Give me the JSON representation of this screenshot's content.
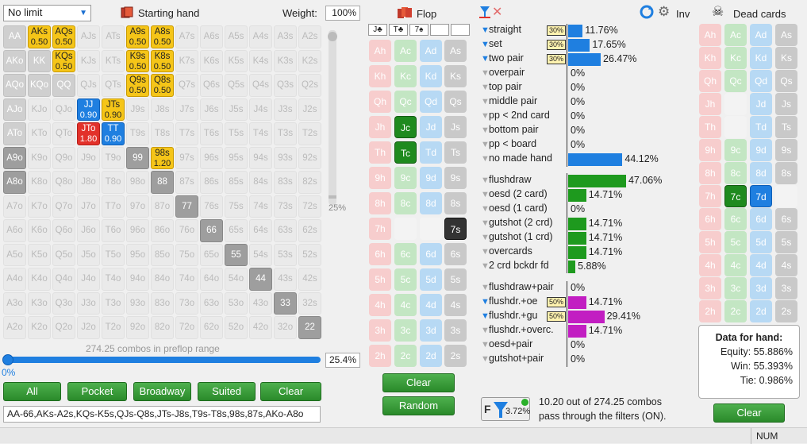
{
  "top": {
    "limit_select": "No limit",
    "starting_hand_label": "Starting hand",
    "weight_label": "Weight:",
    "weight_value": "100%",
    "flop_label": "Flop",
    "inv_label": "Inv",
    "dead_cards_label": "Dead cards"
  },
  "hand_grid": {
    "rows": [
      [
        [
          "AA",
          "g",
          ""
        ],
        [
          "AKs",
          "y",
          "0.50"
        ],
        [
          "AQs",
          "y",
          "0.50"
        ],
        [
          "AJs",
          "",
          ""
        ],
        [
          "ATs",
          "",
          ""
        ],
        [
          "A9s",
          "y",
          "0.50"
        ],
        [
          "A8s",
          "y",
          "0.50"
        ],
        [
          "A7s",
          "",
          ""
        ],
        [
          "A6s",
          "",
          ""
        ],
        [
          "A5s",
          "",
          ""
        ],
        [
          "A4s",
          "",
          ""
        ],
        [
          "A3s",
          "",
          ""
        ],
        [
          "A2s",
          "",
          ""
        ]
      ],
      [
        [
          "AKo",
          "g",
          ""
        ],
        [
          "KK",
          "g",
          ""
        ],
        [
          "KQs",
          "y",
          "0.50"
        ],
        [
          "KJs",
          "",
          ""
        ],
        [
          "KTs",
          "",
          ""
        ],
        [
          "K9s",
          "y",
          "0.50"
        ],
        [
          "K8s",
          "y",
          "0.50"
        ],
        [
          "K7s",
          "",
          ""
        ],
        [
          "K6s",
          "",
          ""
        ],
        [
          "K5s",
          "",
          ""
        ],
        [
          "K4s",
          "",
          ""
        ],
        [
          "K3s",
          "",
          ""
        ],
        [
          "K2s",
          "",
          ""
        ]
      ],
      [
        [
          "AQo",
          "g",
          ""
        ],
        [
          "KQo",
          "g",
          ""
        ],
        [
          "QQ",
          "g",
          ""
        ],
        [
          "QJs",
          "",
          ""
        ],
        [
          "QTs",
          "",
          ""
        ],
        [
          "Q9s",
          "y",
          "0.50"
        ],
        [
          "Q8s",
          "y",
          "0.50"
        ],
        [
          "Q7s",
          "",
          ""
        ],
        [
          "Q6s",
          "",
          ""
        ],
        [
          "Q5s",
          "",
          ""
        ],
        [
          "Q4s",
          "",
          ""
        ],
        [
          "Q3s",
          "",
          ""
        ],
        [
          "Q2s",
          "",
          ""
        ]
      ],
      [
        [
          "AJo",
          "g",
          ""
        ],
        [
          "KJo",
          "",
          ""
        ],
        [
          "QJo",
          "",
          ""
        ],
        [
          "JJ",
          "b",
          "0.90"
        ],
        [
          "JTs",
          "y",
          "0.90"
        ],
        [
          "J9s",
          "",
          ""
        ],
        [
          "J8s",
          "",
          ""
        ],
        [
          "J7s",
          "",
          ""
        ],
        [
          "J6s",
          "",
          ""
        ],
        [
          "J5s",
          "",
          ""
        ],
        [
          "J4s",
          "",
          ""
        ],
        [
          "J3s",
          "",
          ""
        ],
        [
          "J2s",
          "",
          ""
        ]
      ],
      [
        [
          "ATo",
          "g",
          ""
        ],
        [
          "KTo",
          "",
          ""
        ],
        [
          "QTo",
          "",
          ""
        ],
        [
          "JTo",
          "r",
          "1.80"
        ],
        [
          "TT",
          "b",
          "0.90"
        ],
        [
          "T9s",
          "",
          ""
        ],
        [
          "T8s",
          "",
          ""
        ],
        [
          "T7s",
          "",
          ""
        ],
        [
          "T6s",
          "",
          ""
        ],
        [
          "T5s",
          "",
          ""
        ],
        [
          "T4s",
          "",
          ""
        ],
        [
          "T3s",
          "",
          ""
        ],
        [
          "T2s",
          "",
          ""
        ]
      ],
      [
        [
          "A9o",
          "dg",
          ""
        ],
        [
          "K9o",
          "",
          ""
        ],
        [
          "Q9o",
          "",
          ""
        ],
        [
          "J9o",
          "",
          ""
        ],
        [
          "T9o",
          "",
          ""
        ],
        [
          "99",
          "dg",
          ""
        ],
        [
          "98s",
          "y",
          "1.20"
        ],
        [
          "97s",
          "",
          ""
        ],
        [
          "96s",
          "",
          ""
        ],
        [
          "95s",
          "",
          ""
        ],
        [
          "94s",
          "",
          ""
        ],
        [
          "93s",
          "",
          ""
        ],
        [
          "92s",
          "",
          ""
        ]
      ],
      [
        [
          "A8o",
          "dg",
          ""
        ],
        [
          "K8o",
          "",
          ""
        ],
        [
          "Q8o",
          "",
          ""
        ],
        [
          "J8o",
          "",
          ""
        ],
        [
          "T8o",
          "",
          ""
        ],
        [
          "98o",
          "",
          ""
        ],
        [
          "88",
          "dg",
          ""
        ],
        [
          "87s",
          "",
          ""
        ],
        [
          "86s",
          "",
          ""
        ],
        [
          "85s",
          "",
          ""
        ],
        [
          "84s",
          "",
          ""
        ],
        [
          "83s",
          "",
          ""
        ],
        [
          "82s",
          "",
          ""
        ]
      ],
      [
        [
          "A7o",
          "",
          ""
        ],
        [
          "K7o",
          "",
          ""
        ],
        [
          "Q7o",
          "",
          ""
        ],
        [
          "J7o",
          "",
          ""
        ],
        [
          "T7o",
          "",
          ""
        ],
        [
          "97o",
          "",
          ""
        ],
        [
          "87o",
          "",
          ""
        ],
        [
          "77",
          "dg",
          ""
        ],
        [
          "76s",
          "",
          ""
        ],
        [
          "75s",
          "",
          ""
        ],
        [
          "74s",
          "",
          ""
        ],
        [
          "73s",
          "",
          ""
        ],
        [
          "72s",
          "",
          ""
        ]
      ],
      [
        [
          "A6o",
          "",
          ""
        ],
        [
          "K6o",
          "",
          ""
        ],
        [
          "Q6o",
          "",
          ""
        ],
        [
          "J6o",
          "",
          ""
        ],
        [
          "T6o",
          "",
          ""
        ],
        [
          "96o",
          "",
          ""
        ],
        [
          "86o",
          "",
          ""
        ],
        [
          "76o",
          "",
          ""
        ],
        [
          "66",
          "dg",
          ""
        ],
        [
          "65s",
          "",
          ""
        ],
        [
          "64s",
          "",
          ""
        ],
        [
          "63s",
          "",
          ""
        ],
        [
          "62s",
          "",
          ""
        ]
      ],
      [
        [
          "A5o",
          "",
          ""
        ],
        [
          "K5o",
          "",
          ""
        ],
        [
          "Q5o",
          "",
          ""
        ],
        [
          "J5o",
          "",
          ""
        ],
        [
          "T5o",
          "",
          ""
        ],
        [
          "95o",
          "",
          ""
        ],
        [
          "85o",
          "",
          ""
        ],
        [
          "75o",
          "",
          ""
        ],
        [
          "65o",
          "",
          ""
        ],
        [
          "55",
          "dg",
          ""
        ],
        [
          "54s",
          "",
          ""
        ],
        [
          "53s",
          "",
          ""
        ],
        [
          "52s",
          "",
          ""
        ]
      ],
      [
        [
          "A4o",
          "",
          ""
        ],
        [
          "K4o",
          "",
          ""
        ],
        [
          "Q4o",
          "",
          ""
        ],
        [
          "J4o",
          "",
          ""
        ],
        [
          "T4o",
          "",
          ""
        ],
        [
          "94o",
          "",
          ""
        ],
        [
          "84o",
          "",
          ""
        ],
        [
          "74o",
          "",
          ""
        ],
        [
          "64o",
          "",
          ""
        ],
        [
          "54o",
          "",
          ""
        ],
        [
          "44",
          "dg",
          ""
        ],
        [
          "43s",
          "",
          ""
        ],
        [
          "42s",
          "",
          ""
        ]
      ],
      [
        [
          "A3o",
          "",
          ""
        ],
        [
          "K3o",
          "",
          ""
        ],
        [
          "Q3o",
          "",
          ""
        ],
        [
          "J3o",
          "",
          ""
        ],
        [
          "T3o",
          "",
          ""
        ],
        [
          "93o",
          "",
          ""
        ],
        [
          "83o",
          "",
          ""
        ],
        [
          "73o",
          "",
          ""
        ],
        [
          "63o",
          "",
          ""
        ],
        [
          "53o",
          "",
          ""
        ],
        [
          "43o",
          "",
          ""
        ],
        [
          "33",
          "dg",
          ""
        ],
        [
          "32s",
          "",
          ""
        ]
      ],
      [
        [
          "A2o",
          "",
          ""
        ],
        [
          "K2o",
          "",
          ""
        ],
        [
          "Q2o",
          "",
          ""
        ],
        [
          "J2o",
          "",
          ""
        ],
        [
          "T2o",
          "",
          ""
        ],
        [
          "92o",
          "",
          ""
        ],
        [
          "82o",
          "",
          ""
        ],
        [
          "72o",
          "",
          ""
        ],
        [
          "62o",
          "",
          ""
        ],
        [
          "52o",
          "",
          ""
        ],
        [
          "42o",
          "",
          ""
        ],
        [
          "32o",
          "",
          ""
        ],
        [
          "22",
          "dg",
          ""
        ]
      ]
    ],
    "combos_text": "274.25 combos in preflop range",
    "vslider_label": "25%",
    "hslider_left": "0%",
    "hslider_value": "25.4%"
  },
  "buttons": {
    "all": "All",
    "pocket": "Pocket",
    "broadway": "Broadway",
    "suited": "Suited",
    "clear": "Clear"
  },
  "range_text": "AA-66,AKs-A2s,KQs-K5s,QJs-Q8s,JTs-J8s,T9s-T8s,98s,87s,AKo-A8o",
  "flop": {
    "slots": [
      "J♣",
      "T♣",
      "7♠",
      "",
      ""
    ],
    "ranks": [
      "A",
      "K",
      "Q",
      "J",
      "T",
      "9",
      "8",
      "7",
      "6",
      "5",
      "4",
      "3",
      "2"
    ],
    "selected": {
      "J-c": "sel-c",
      "T-c": "sel-c",
      "7-s": "sel-s"
    },
    "faint": [
      "J-c-row",
      "7-c",
      "7-d"
    ],
    "clear_label": "Clear",
    "random_label": "Random"
  },
  "stats": {
    "made": [
      {
        "label": "straight",
        "on": true,
        "tag": "30%",
        "pct": "11.76%",
        "w": 11.76,
        "color": "#1f7fe0"
      },
      {
        "label": "set",
        "on": true,
        "tag": "30%",
        "pct": "17.65%",
        "w": 17.65,
        "color": "#1f7fe0"
      },
      {
        "label": "two pair",
        "on": true,
        "tag": "30%",
        "pct": "26.47%",
        "w": 26.47,
        "color": "#1f7fe0"
      },
      {
        "label": "overpair",
        "on": false,
        "tag": "",
        "pct": "0%",
        "w": 0,
        "color": "#1f7fe0"
      },
      {
        "label": "top pair",
        "on": false,
        "tag": "",
        "pct": "0%",
        "w": 0,
        "color": "#1f7fe0"
      },
      {
        "label": "middle pair",
        "on": false,
        "tag": "",
        "pct": "0%",
        "w": 0,
        "color": "#1f7fe0"
      },
      {
        "label": "pp < 2nd card",
        "on": false,
        "tag": "",
        "pct": "0%",
        "w": 0,
        "color": "#1f7fe0"
      },
      {
        "label": "bottom pair",
        "on": false,
        "tag": "",
        "pct": "0%",
        "w": 0,
        "color": "#1f7fe0"
      },
      {
        "label": "pp < board",
        "on": false,
        "tag": "",
        "pct": "0%",
        "w": 0,
        "color": "#1f7fe0"
      },
      {
        "label": "no made hand",
        "on": false,
        "tag": "",
        "pct": "44.12%",
        "w": 44.12,
        "color": "#1f7fe0"
      }
    ],
    "draws": [
      {
        "label": "flushdraw",
        "on": false,
        "tag": "",
        "pct": "47.06%",
        "w": 47.06,
        "color": "#1e9a1e"
      },
      {
        "label": "oesd (2 card)",
        "on": false,
        "tag": "",
        "pct": "14.71%",
        "w": 14.71,
        "color": "#1e9a1e"
      },
      {
        "label": "oesd (1 card)",
        "on": false,
        "tag": "",
        "pct": "0%",
        "w": 0,
        "color": "#1e9a1e"
      },
      {
        "label": "gutshot (2 crd)",
        "on": false,
        "tag": "",
        "pct": "14.71%",
        "w": 14.71,
        "color": "#1e9a1e"
      },
      {
        "label": "gutshot (1 crd)",
        "on": false,
        "tag": "",
        "pct": "14.71%",
        "w": 14.71,
        "color": "#1e9a1e"
      },
      {
        "label": "overcards",
        "on": false,
        "tag": "",
        "pct": "14.71%",
        "w": 14.71,
        "color": "#1e9a1e"
      },
      {
        "label": "2 crd bckdr fd",
        "on": false,
        "tag": "",
        "pct": "5.88%",
        "w": 5.88,
        "color": "#1e9a1e"
      }
    ],
    "combos": [
      {
        "label": "flushdraw+pair",
        "on": false,
        "tag": "",
        "pct": "0%",
        "w": 0,
        "color": "#c21ec2"
      },
      {
        "label": "flushdr.+oe",
        "on": true,
        "tag": "50%",
        "pct": "14.71%",
        "w": 14.71,
        "color": "#c21ec2"
      },
      {
        "label": "flushdr.+gu",
        "on": true,
        "tag": "50%",
        "pct": "29.41%",
        "w": 29.41,
        "color": "#c21ec2"
      },
      {
        "label": "flushdr.+overc.",
        "on": false,
        "tag": "",
        "pct": "14.71%",
        "w": 14.71,
        "color": "#c21ec2"
      },
      {
        "label": "oesd+pair",
        "on": false,
        "tag": "",
        "pct": "0%",
        "w": 0,
        "color": "#c21ec2"
      },
      {
        "label": "gutshot+pair",
        "on": false,
        "tag": "",
        "pct": "0%",
        "w": 0,
        "color": "#c21ec2"
      }
    ],
    "filter_pct": "3.72%",
    "filter_text_1": "10.20 out of 274.25 combos",
    "filter_text_2": "pass through the filters (ON)."
  },
  "dead": {
    "title": "Data for hand:",
    "equity": "Equity: 55.886%",
    "win": "Win: 55.393%",
    "tie": "Tie: 0.986%",
    "clear_label": "Clear"
  },
  "statusbar": {
    "num": "NUM"
  }
}
